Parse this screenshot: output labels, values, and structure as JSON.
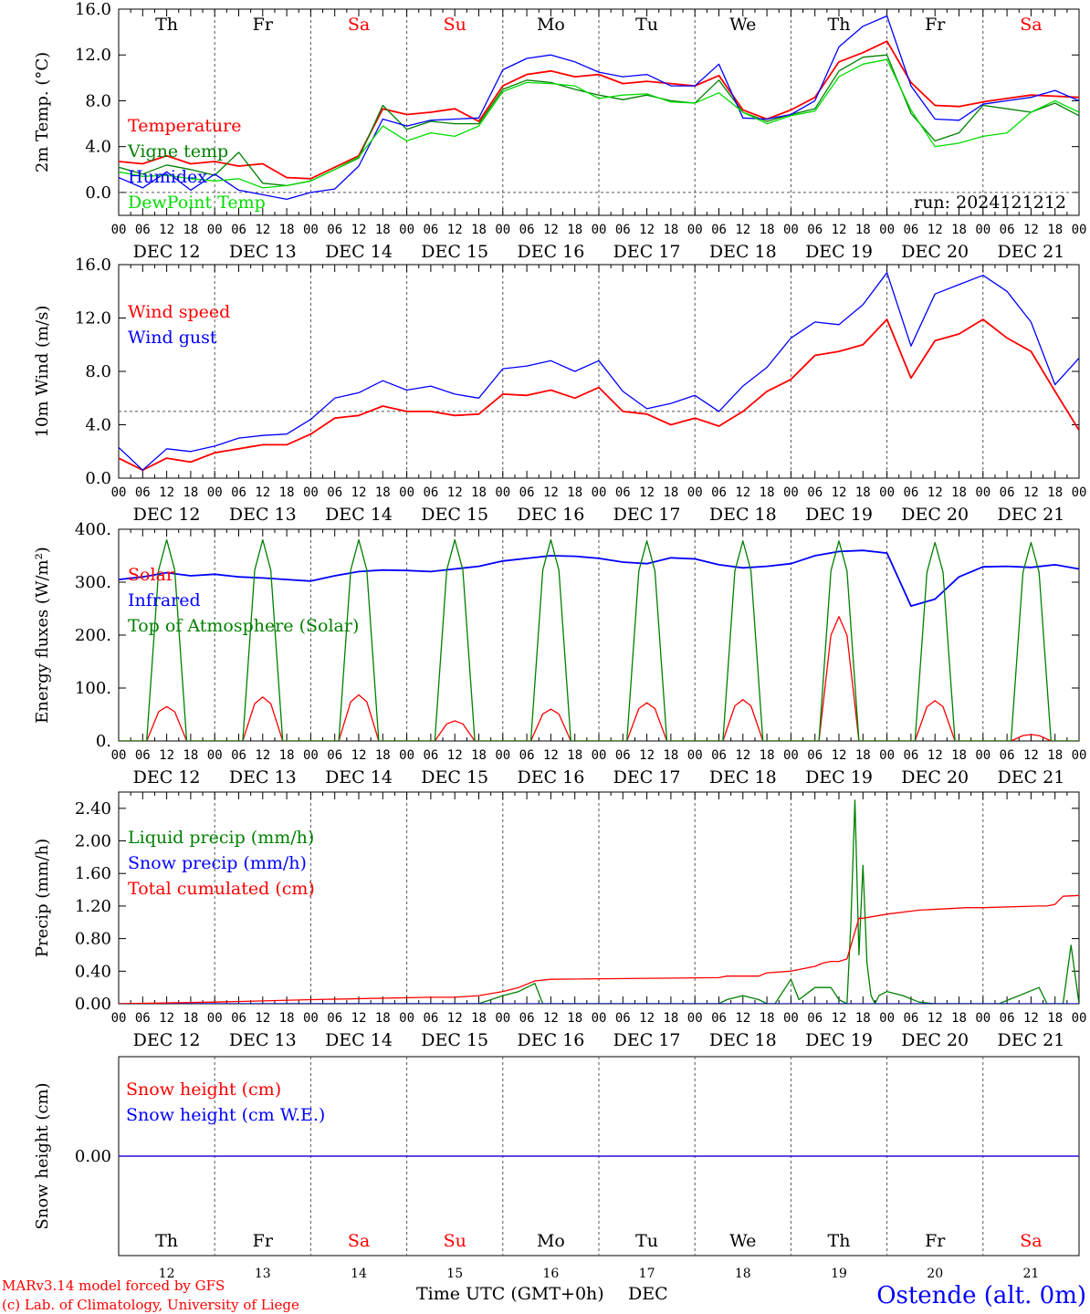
{
  "colors": {
    "red": "#ff0000",
    "darkgreen": "#008000",
    "blue": "#0000ff",
    "lightgreen": "#00dd00",
    "grid": "#555555",
    "text": "#000000"
  },
  "header_days": [
    {
      "label": "Th",
      "color": "#000000"
    },
    {
      "label": "Fr",
      "color": "#000000"
    },
    {
      "label": "Sa",
      "color": "#ff0000"
    },
    {
      "label": "Su",
      "color": "#ff0000"
    },
    {
      "label": "Mo",
      "color": "#000000"
    },
    {
      "label": "Tu",
      "color": "#000000"
    },
    {
      "label": "We",
      "color": "#000000"
    },
    {
      "label": "Th",
      "color": "#000000"
    },
    {
      "label": "Fr",
      "color": "#000000"
    },
    {
      "label": "Sa",
      "color": "#ff0000"
    }
  ],
  "hour_ticks": [
    "00",
    "06",
    "12",
    "18"
  ],
  "dates": [
    "DEC 12",
    "DEC 13",
    "DEC 14",
    "DEC 15",
    "DEC 16",
    "DEC 17",
    "DEC 18",
    "DEC 19",
    "DEC 20",
    "DEC 21"
  ],
  "bottom_day_numbers": [
    "12",
    "13",
    "14",
    "15",
    "16",
    "17",
    "18",
    "19",
    "20",
    "21"
  ],
  "chart_data": [
    {
      "type": "line",
      "ylabel": "2m Temp. (°C)",
      "yticks": [
        "16.0",
        "12.0",
        "8.0",
        "4.0",
        "0.0"
      ],
      "ylim": [
        -2,
        16
      ],
      "xlim_hours": [
        0,
        240
      ],
      "annotation": "run: 2024121212",
      "series": [
        {
          "name": "Temperature",
          "color": "#ff0000",
          "x": [
            0,
            6,
            12,
            18,
            24,
            30,
            36,
            42,
            48,
            54,
            60,
            66,
            72,
            78,
            84,
            90,
            96,
            102,
            108,
            114,
            120,
            126,
            132,
            138,
            144,
            150,
            156,
            162,
            168,
            174,
            180,
            186,
            192,
            198,
            204,
            210,
            216,
            222,
            228,
            234,
            240
          ],
          "y": [
            2.7,
            2.5,
            3.2,
            2.5,
            2.7,
            2.3,
            2.5,
            1.3,
            1.2,
            2.2,
            3.2,
            7.3,
            6.8,
            7.0,
            7.3,
            6.2,
            9.3,
            10.3,
            10.6,
            10.1,
            10.3,
            9.5,
            9.7,
            9.5,
            9.3,
            10.2,
            7.2,
            6.4,
            7.2,
            8.3,
            11.4,
            12.2,
            13.2,
            9.6,
            7.6,
            7.5,
            7.9,
            8.2,
            8.5,
            8.4,
            8.3
          ]
        },
        {
          "name": "Vigne temp",
          "color": "#008000",
          "x": [
            0,
            6,
            12,
            18,
            24,
            30,
            36,
            42,
            48,
            54,
            60,
            66,
            72,
            78,
            84,
            90,
            96,
            102,
            108,
            114,
            120,
            126,
            132,
            138,
            144,
            150,
            156,
            162,
            168,
            174,
            180,
            186,
            192,
            198,
            204,
            210,
            216,
            222,
            228,
            234,
            240
          ],
          "y": [
            2.2,
            1.6,
            2.4,
            2.0,
            1.5,
            3.5,
            0.8,
            0.6,
            1.0,
            2.0,
            3.0,
            7.6,
            5.5,
            6.2,
            6.0,
            6.0,
            9.0,
            9.8,
            9.6,
            9.0,
            8.5,
            8.1,
            8.5,
            8.0,
            7.8,
            9.8,
            7.0,
            6.2,
            6.8,
            7.3,
            10.6,
            11.8,
            12.0,
            6.9,
            4.5,
            5.2,
            7.6,
            7.3,
            7.0,
            7.8,
            6.7
          ]
        },
        {
          "name": "Humidex",
          "color": "#0000ff",
          "x": [
            0,
            6,
            12,
            18,
            24,
            30,
            36,
            42,
            48,
            54,
            60,
            66,
            72,
            78,
            84,
            90,
            96,
            102,
            108,
            114,
            120,
            126,
            132,
            138,
            144,
            150,
            156,
            162,
            168,
            174,
            180,
            186,
            192,
            198,
            204,
            210,
            216,
            222,
            228,
            234,
            240
          ],
          "y": [
            1.3,
            0.4,
            1.8,
            0.2,
            1.6,
            0.2,
            -0.2,
            -0.6,
            0.0,
            0.3,
            2.3,
            6.4,
            5.8,
            6.3,
            6.4,
            6.5,
            10.7,
            11.7,
            12.0,
            11.4,
            10.5,
            10.1,
            10.3,
            9.3,
            9.3,
            11.2,
            6.5,
            6.4,
            6.8,
            8.0,
            12.7,
            14.5,
            15.4,
            9.3,
            6.4,
            6.3,
            7.7,
            8.0,
            8.3,
            8.9,
            8.0
          ]
        },
        {
          "name": "DewPoint Temp",
          "color": "#00dd00",
          "x": [
            0,
            6,
            12,
            18,
            24,
            30,
            36,
            42,
            48,
            54,
            60,
            66,
            72,
            78,
            84,
            90,
            96,
            102,
            108,
            114,
            120,
            126,
            132,
            138,
            144,
            150,
            156,
            162,
            168,
            174,
            180,
            186,
            192,
            198,
            204,
            210,
            216,
            222,
            228,
            234,
            240
          ],
          "y": [
            1.8,
            1.4,
            1.5,
            1.2,
            1.0,
            1.2,
            0.4,
            0.6,
            1.0,
            2.0,
            3.1,
            5.8,
            4.5,
            5.2,
            4.9,
            5.8,
            8.8,
            9.6,
            9.5,
            9.3,
            8.2,
            8.5,
            8.6,
            7.9,
            7.8,
            8.7,
            7.0,
            6.0,
            6.7,
            7.1,
            10.1,
            11.2,
            11.6,
            7.2,
            4.0,
            4.3,
            4.9,
            5.2,
            7.0,
            8.0,
            7.0
          ]
        }
      ]
    },
    {
      "type": "line",
      "ylabel": "10m Wind (m/s)",
      "yticks": [
        "16.0",
        "12.0",
        "8.0",
        "4.0",
        "0.0"
      ],
      "ylim": [
        0,
        16
      ],
      "reference_line": 5,
      "series": [
        {
          "name": "Wind speed",
          "color": "#ff0000",
          "x": [
            0,
            6,
            12,
            18,
            24,
            30,
            36,
            42,
            48,
            54,
            60,
            66,
            72,
            78,
            84,
            90,
            96,
            102,
            108,
            114,
            120,
            126,
            132,
            138,
            144,
            150,
            156,
            162,
            168,
            174,
            180,
            186,
            192,
            198,
            204,
            210,
            216,
            222,
            228,
            234,
            240
          ],
          "y": [
            1.5,
            0.6,
            1.5,
            1.2,
            1.9,
            2.2,
            2.5,
            2.5,
            3.3,
            4.5,
            4.7,
            5.4,
            5.0,
            5.0,
            4.7,
            4.8,
            6.3,
            6.2,
            6.6,
            6.0,
            6.8,
            5.0,
            4.8,
            4.0,
            4.5,
            3.9,
            5.0,
            6.5,
            7.4,
            9.2,
            9.5,
            10.0,
            11.9,
            7.5,
            10.3,
            10.8,
            11.9,
            10.5,
            9.5,
            6.5,
            3.6
          ]
        },
        {
          "name": "Wind gust",
          "color": "#0000ff",
          "x": [
            0,
            6,
            12,
            18,
            24,
            30,
            36,
            42,
            48,
            54,
            60,
            66,
            72,
            78,
            84,
            90,
            96,
            102,
            108,
            114,
            120,
            126,
            132,
            138,
            144,
            150,
            156,
            162,
            168,
            174,
            180,
            186,
            192,
            198,
            204,
            210,
            216,
            222,
            228,
            234,
            240
          ],
          "y": [
            2.3,
            0.6,
            2.2,
            2.0,
            2.4,
            3.0,
            3.2,
            3.3,
            4.4,
            6.0,
            6.4,
            7.3,
            6.6,
            6.9,
            6.3,
            6.0,
            8.2,
            8.4,
            8.8,
            8.0,
            8.8,
            6.5,
            5.2,
            5.6,
            6.2,
            5.0,
            6.9,
            8.3,
            10.5,
            11.7,
            11.5,
            13.0,
            15.4,
            9.9,
            13.8,
            14.5,
            15.2,
            14.0,
            11.7,
            7.0,
            9.0
          ]
        }
      ]
    },
    {
      "type": "line",
      "ylabel": "Energy fluxes (W/m²)",
      "yticks": [
        "400.",
        "300.",
        "200.",
        "100.",
        "0."
      ],
      "ylim": [
        0,
        400
      ],
      "series": [
        {
          "name": "Solar",
          "color": "#ff0000",
          "peaks": [
            65,
            83,
            87,
            38,
            60,
            72,
            78,
            235,
            76,
            12
          ]
        },
        {
          "name": "Infrared",
          "color": "#0000ff",
          "x": [
            0,
            6,
            12,
            18,
            24,
            30,
            36,
            42,
            48,
            54,
            60,
            66,
            72,
            78,
            84,
            90,
            96,
            102,
            108,
            114,
            120,
            126,
            132,
            138,
            144,
            150,
            156,
            162,
            168,
            174,
            180,
            186,
            192,
            198,
            204,
            210,
            216,
            222,
            228,
            234,
            240
          ],
          "y": [
            305,
            310,
            318,
            312,
            315,
            310,
            308,
            305,
            302,
            312,
            320,
            323,
            322,
            320,
            325,
            330,
            340,
            345,
            350,
            349,
            345,
            338,
            335,
            346,
            344,
            333,
            327,
            330,
            335,
            350,
            358,
            360,
            355,
            255,
            268,
            310,
            329,
            330,
            328,
            333,
            325
          ]
        },
        {
          "name": "Top of Atmosphere (Solar)",
          "color": "#008000",
          "peaks": [
            380,
            380,
            380,
            380,
            380,
            378,
            378,
            378,
            375,
            375
          ]
        }
      ]
    },
    {
      "type": "line",
      "ylabel": "Precip (mm/h)",
      "yticks": [
        "2.40",
        "2.00",
        "1.60",
        "1.20",
        "0.80",
        "0.40",
        "0.00"
      ],
      "ylim": [
        0,
        2.6
      ],
      "series": [
        {
          "name": "Liquid precip (mm/h)",
          "color": "#008000",
          "x": [
            0,
            60,
            70,
            84,
            90,
            96,
            100,
            104,
            106,
            110,
            130,
            150,
            152,
            156,
            160,
            162,
            164,
            168,
            170,
            174,
            178,
            180,
            182,
            183,
            184,
            185,
            186,
            187,
            188,
            189,
            190,
            192,
            196,
            200,
            204,
            210,
            220,
            230,
            232,
            234,
            236,
            238,
            240
          ],
          "y": [
            0,
            0,
            0,
            0,
            0,
            0.1,
            0.15,
            0.25,
            0,
            0,
            0,
            0,
            0.05,
            0.1,
            0.05,
            0,
            0,
            0.3,
            0.05,
            0.2,
            0.2,
            0.05,
            0,
            1.0,
            2.5,
            0.6,
            1.7,
            0.5,
            0.1,
            0,
            0.1,
            0.15,
            0.1,
            0.02,
            0,
            0,
            0,
            0.2,
            0,
            0,
            0,
            0.72,
            0
          ]
        },
        {
          "name": "Snow precip (mm/h)",
          "color": "#0000ff",
          "x": [
            0,
            240
          ],
          "y": [
            0,
            0
          ]
        },
        {
          "name": "Total cumulated (cm)",
          "color": "#ff0000",
          "x": [
            0,
            24,
            48,
            78,
            84,
            90,
            96,
            100,
            104,
            108,
            150,
            152,
            156,
            160,
            162,
            168,
            174,
            176,
            178,
            180,
            182,
            185,
            186,
            192,
            200,
            212,
            216,
            230,
            232,
            234,
            236,
            240
          ],
          "y": [
            0,
            0.02,
            0.05,
            0.08,
            0.08,
            0.1,
            0.15,
            0.2,
            0.28,
            0.3,
            0.32,
            0.34,
            0.34,
            0.34,
            0.38,
            0.4,
            0.46,
            0.5,
            0.52,
            0.52,
            0.55,
            1.05,
            1.05,
            1.1,
            1.15,
            1.18,
            1.18,
            1.2,
            1.2,
            1.22,
            1.32,
            1.33
          ]
        }
      ]
    },
    {
      "type": "line",
      "ylabel": "Snow height (cm)",
      "yticks": [
        "0.00"
      ],
      "ylim": [
        -1,
        1
      ],
      "series": [
        {
          "name": "Snow height (cm)",
          "color": "#ff0000",
          "x": [
            0,
            240
          ],
          "y": [
            0,
            0
          ]
        },
        {
          "name": "Snow height (cm W.E.)",
          "color": "#0000ff",
          "x": [
            0,
            240
          ],
          "y": [
            0,
            0
          ]
        }
      ]
    }
  ],
  "footer": {
    "xlabel_left": "Time UTC (GMT+0h)",
    "xlabel_right": "DEC",
    "credit_line1": "MARv3.14 model forced by GFS",
    "credit_line2": "(c) Lab. of Climatology, University of Liege",
    "station": "Ostende (alt. 0m)"
  }
}
